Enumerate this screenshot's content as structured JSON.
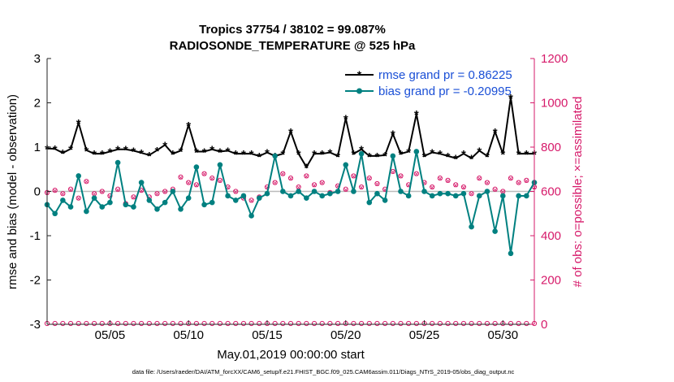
{
  "chart_data": {
    "type": "line",
    "title": "Tropics 37754 / 38102 = 99.087%",
    "subtitle": "RADIOSONDE_TEMPERATURE @ 525 hPa",
    "xlabel": "May.01,2019 00:00:00 start",
    "ylabel_left": "rmse and bias (model - observation)",
    "ylabel_right": "# of obs: o=possible; ×=assimilated",
    "xlim": [
      1,
      32
    ],
    "ylim_left": [
      -3,
      3
    ],
    "ylim_right": [
      0,
      1200
    ],
    "x_ticks": [
      5,
      10,
      15,
      20,
      25,
      30
    ],
    "x_tick_labels": [
      "05/05",
      "05/10",
      "05/15",
      "05/20",
      "05/25",
      "05/30"
    ],
    "y_ticks_left": [
      -3,
      -2,
      -1,
      0,
      1,
      2,
      3
    ],
    "y_ticks_right": [
      0,
      200,
      400,
      600,
      800,
      1000,
      1200
    ],
    "x": [
      1.0,
      1.5,
      2.0,
      2.5,
      3.0,
      3.5,
      4.0,
      4.5,
      5.0,
      5.5,
      6.0,
      6.5,
      7.0,
      7.5,
      8.0,
      8.5,
      9.0,
      9.5,
      10.0,
      10.5,
      11.0,
      11.5,
      12.0,
      12.5,
      13.0,
      13.5,
      14.0,
      14.5,
      15.0,
      15.5,
      16.0,
      16.5,
      17.0,
      17.5,
      18.0,
      18.5,
      19.0,
      19.5,
      20.0,
      20.5,
      21.0,
      21.5,
      22.0,
      22.5,
      23.0,
      23.5,
      24.0,
      24.5,
      25.0,
      25.5,
      26.0,
      26.5,
      27.0,
      27.5,
      28.0,
      28.5,
      29.0,
      29.5,
      30.0,
      30.5,
      31.0,
      31.5,
      32.0
    ],
    "series": [
      {
        "name": "rmse grand pr = 0.86225",
        "color": "#000000",
        "marker": "asterisk",
        "values": [
          0.97,
          0.96,
          0.87,
          0.96,
          1.55,
          0.93,
          0.85,
          0.85,
          0.9,
          0.95,
          0.95,
          0.92,
          0.87,
          0.82,
          0.93,
          1.05,
          0.85,
          0.92,
          1.5,
          0.9,
          0.9,
          0.95,
          0.9,
          0.92,
          0.85,
          0.85,
          0.85,
          0.8,
          0.88,
          0.8,
          0.85,
          1.35,
          0.85,
          0.55,
          0.85,
          0.85,
          0.88,
          0.8,
          1.65,
          0.85,
          0.95,
          0.8,
          0.8,
          0.82,
          1.3,
          0.85,
          0.9,
          1.75,
          0.8,
          0.88,
          0.85,
          0.8,
          0.75,
          0.85,
          0.75,
          0.92,
          0.8,
          1.35,
          0.85,
          2.12,
          0.85,
          0.85,
          0.85
        ]
      },
      {
        "name": "bias grand pr = -0.20995",
        "color": "#008080",
        "marker": "circle",
        "values": [
          -0.3,
          -0.5,
          -0.2,
          -0.35,
          0.35,
          -0.45,
          -0.15,
          -0.35,
          -0.25,
          0.65,
          -0.3,
          -0.35,
          0.2,
          -0.2,
          -0.4,
          -0.25,
          0.0,
          -0.4,
          -0.15,
          0.55,
          -0.3,
          -0.25,
          0.6,
          -0.1,
          -0.2,
          -0.1,
          -0.55,
          -0.15,
          -0.05,
          0.8,
          0.0,
          -0.1,
          0.0,
          -0.15,
          0.0,
          -0.1,
          -0.05,
          0.0,
          0.6,
          0.0,
          0.85,
          -0.25,
          -0.05,
          -0.2,
          0.8,
          0.0,
          -0.1,
          0.9,
          0.0,
          -0.1,
          -0.05,
          -0.05,
          -0.1,
          -0.05,
          -0.8,
          -0.1,
          0.0,
          -0.9,
          -0.1,
          -1.4,
          -0.1,
          -0.1,
          0.2
        ]
      }
    ],
    "obs_possible": [
      595,
      605,
      590,
      610,
      570,
      645,
      590,
      600,
      580,
      610,
      545,
      575,
      605,
      575,
      590,
      600,
      610,
      665,
      640,
      630,
      680,
      660,
      650,
      620,
      600,
      570,
      560,
      575,
      620,
      640,
      680,
      660,
      620,
      670,
      630,
      640,
      595,
      625,
      610,
      670,
      620,
      660,
      635,
      610,
      690,
      670,
      630,
      680,
      640,
      620,
      660,
      650,
      630,
      620,
      590,
      660,
      640,
      610,
      600,
      660,
      640,
      650,
      620
    ]
  }
}
